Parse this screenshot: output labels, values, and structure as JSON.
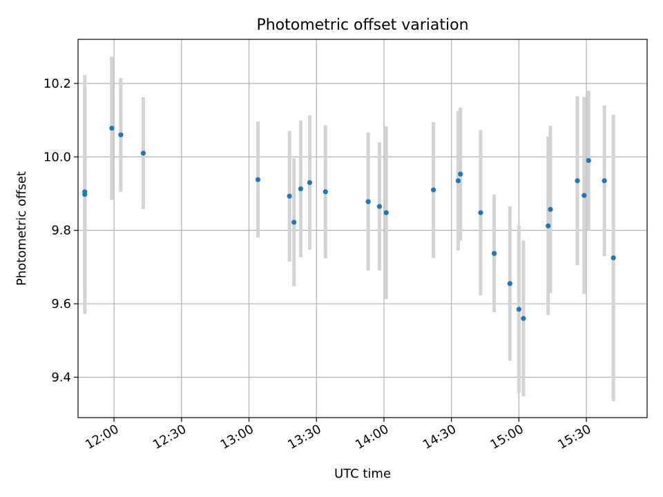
{
  "chart_data": {
    "type": "scatter",
    "title": "Photometric offset variation",
    "xlabel": "UTC time",
    "ylabel": "Photometric offset",
    "xlim": [
      "11:44",
      "15:57"
    ],
    "ylim": [
      9.29,
      10.32
    ],
    "x_ticks": [
      "12:00",
      "12:30",
      "13:00",
      "13:30",
      "14:00",
      "14:30",
      "15:00",
      "15:30"
    ],
    "y_ticks": [
      9.4,
      9.6,
      9.8,
      10.0,
      10.2
    ],
    "grid": true,
    "legend": "none",
    "colors": {
      "marker": "#1f77b4",
      "errorbar": "#d3d3d3",
      "grid": "#b0b0b0"
    },
    "points": [
      {
        "time": "11:47",
        "y": 9.905,
        "err": 0.285
      },
      {
        "time": "11:47",
        "y": 9.898,
        "err": 0.325
      },
      {
        "time": "11:59",
        "y": 10.078,
        "err": 0.195
      },
      {
        "time": "12:03",
        "y": 10.06,
        "err": 0.155
      },
      {
        "time": "12:13",
        "y": 10.01,
        "err": 0.152
      },
      {
        "time": "13:04",
        "y": 9.938,
        "err": 0.158
      },
      {
        "time": "13:18",
        "y": 9.893,
        "err": 0.178
      },
      {
        "time": "13:20",
        "y": 9.822,
        "err": 0.174
      },
      {
        "time": "13:23",
        "y": 9.913,
        "err": 0.186
      },
      {
        "time": "13:27",
        "y": 9.93,
        "err": 0.183
      },
      {
        "time": "13:34",
        "y": 9.905,
        "err": 0.181
      },
      {
        "time": "13:53",
        "y": 9.878,
        "err": 0.188
      },
      {
        "time": "13:58",
        "y": 9.865,
        "err": 0.175
      },
      {
        "time": "14:01",
        "y": 9.848,
        "err": 0.235
      },
      {
        "time": "14:22",
        "y": 9.91,
        "err": 0.185
      },
      {
        "time": "14:33",
        "y": 9.935,
        "err": 0.19
      },
      {
        "time": "14:34",
        "y": 9.953,
        "err": 0.181
      },
      {
        "time": "14:43",
        "y": 9.848,
        "err": 0.225
      },
      {
        "time": "14:49",
        "y": 9.737,
        "err": 0.16
      },
      {
        "time": "14:56",
        "y": 9.655,
        "err": 0.21
      },
      {
        "time": "15:00",
        "y": 9.585,
        "err": 0.228
      },
      {
        "time": "15:02",
        "y": 9.56,
        "err": 0.212
      },
      {
        "time": "15:13",
        "y": 9.812,
        "err": 0.243
      },
      {
        "time": "15:14",
        "y": 9.857,
        "err": 0.228
      },
      {
        "time": "15:26",
        "y": 9.935,
        "err": 0.23
      },
      {
        "time": "15:29",
        "y": 9.895,
        "err": 0.268
      },
      {
        "time": "15:31",
        "y": 9.99,
        "err": 0.19
      },
      {
        "time": "15:38",
        "y": 9.935,
        "err": 0.205
      },
      {
        "time": "15:42",
        "y": 9.725,
        "err": 0.39
      }
    ]
  }
}
